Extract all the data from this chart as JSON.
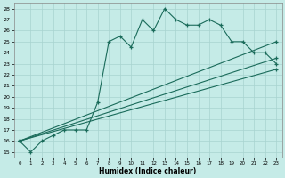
{
  "title": "",
  "xlabel": "Humidex (Indice chaleur)",
  "ylabel": "",
  "bg_color": "#c5ebe7",
  "line_color": "#1a6b5a",
  "grid_color": "#a8d4d0",
  "ylim": [
    14.5,
    28.5
  ],
  "xlim": [
    -0.5,
    23.5
  ],
  "yticks": [
    15,
    16,
    17,
    18,
    19,
    20,
    21,
    22,
    23,
    24,
    25,
    26,
    27,
    28
  ],
  "xticks": [
    0,
    1,
    2,
    3,
    4,
    5,
    6,
    7,
    8,
    9,
    10,
    11,
    12,
    13,
    14,
    15,
    16,
    17,
    18,
    19,
    20,
    21,
    22,
    23
  ],
  "line1_x": [
    0,
    1,
    2,
    3,
    4,
    5,
    6,
    7,
    8,
    9,
    10,
    11,
    12,
    13,
    14,
    15,
    16,
    17,
    18,
    19,
    20,
    21,
    22,
    23
  ],
  "line1_y": [
    16,
    15,
    16,
    16.5,
    17,
    17,
    17,
    19.5,
    25,
    25.5,
    24.5,
    27,
    26,
    28,
    27,
    26.5,
    26.5,
    27,
    26.5,
    25,
    25,
    24,
    24,
    23
  ],
  "line2_x": [
    0,
    23
  ],
  "line2_y": [
    16,
    25
  ],
  "line3_x": [
    0,
    23
  ],
  "line3_y": [
    16,
    23.5
  ],
  "line4_x": [
    0,
    23
  ],
  "line4_y": [
    16,
    22.5
  ],
  "marker1_x": [
    0,
    1,
    2,
    3,
    4,
    5,
    6,
    7,
    8,
    9,
    10,
    11,
    12,
    13,
    14,
    15,
    16,
    17,
    18,
    19,
    20,
    21,
    22,
    23
  ],
  "marker1_y": [
    16,
    15,
    16,
    16.5,
    17,
    17,
    17,
    19.5,
    25,
    25.5,
    24.5,
    27,
    26,
    28,
    27,
    26.5,
    26.5,
    27,
    26.5,
    25,
    25,
    24,
    24,
    23
  ]
}
